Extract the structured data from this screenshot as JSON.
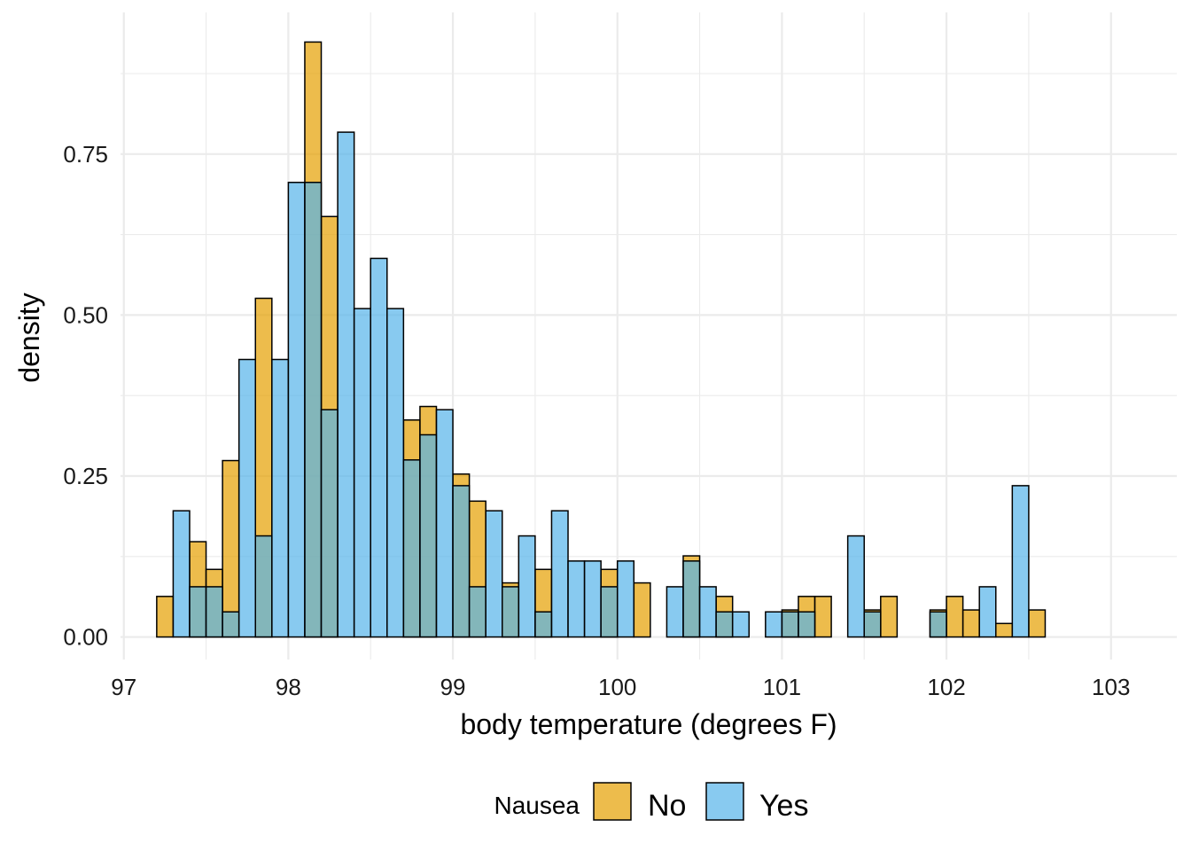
{
  "chart_data": {
    "type": "histogram",
    "xlabel": "body temperature (degrees F)",
    "ylabel": "density",
    "xlim": [
      96.98,
      103.4
    ],
    "ylim": [
      -0.035,
      0.97
    ],
    "x_ticks": [
      97,
      98,
      99,
      100,
      101,
      102,
      103
    ],
    "y_ticks": [
      0.0,
      0.25,
      0.5,
      0.75
    ],
    "y_tick_labels": [
      "0.00",
      "0.25",
      "0.50",
      "0.75"
    ],
    "grid": true,
    "bin_start": 97.2,
    "bin_width": 0.1,
    "legend": {
      "title": "Nausea",
      "position": "bottom",
      "items": [
        {
          "label": "No",
          "color": "#E69F00"
        },
        {
          "label": "Yes",
          "color": "#56B4E9"
        }
      ]
    },
    "series": [
      {
        "name": "No",
        "color": "#E69F00",
        "values": [
          0.063,
          0.0,
          0.148,
          0.105,
          0.274,
          0.0,
          0.526,
          0.0,
          0.0,
          0.924,
          0.653,
          0.0,
          0.0,
          0.0,
          0.0,
          0.337,
          0.358,
          0.0,
          0.253,
          0.211,
          0.0,
          0.084,
          0.0,
          0.105,
          0.0,
          0.0,
          0.0,
          0.105,
          0.0,
          0.084,
          0.0,
          0.0,
          0.126,
          0.0,
          0.063,
          0.0,
          0.0,
          0.0,
          0.042,
          0.063,
          0.063,
          0.0,
          0.0,
          0.042,
          0.063,
          0.0,
          0.0,
          0.042,
          0.063,
          0.042,
          0.0,
          0.021,
          0.0,
          0.042
        ]
      },
      {
        "name": "Yes",
        "color": "#56B4E9",
        "values": [
          0.0,
          0.196,
          0.078,
          0.078,
          0.039,
          0.431,
          0.157,
          0.431,
          0.706,
          0.706,
          0.353,
          0.784,
          0.51,
          0.588,
          0.51,
          0.275,
          0.314,
          0.353,
          0.235,
          0.078,
          0.196,
          0.078,
          0.157,
          0.039,
          0.196,
          0.118,
          0.118,
          0.078,
          0.118,
          0.0,
          0.0,
          0.078,
          0.118,
          0.078,
          0.039,
          0.039,
          0.0,
          0.039,
          0.039,
          0.039,
          0.0,
          0.0,
          0.157,
          0.039,
          0.0,
          0.0,
          0.0,
          0.039,
          0.0,
          0.0,
          0.078,
          0.0,
          0.235,
          0.0
        ]
      }
    ]
  }
}
